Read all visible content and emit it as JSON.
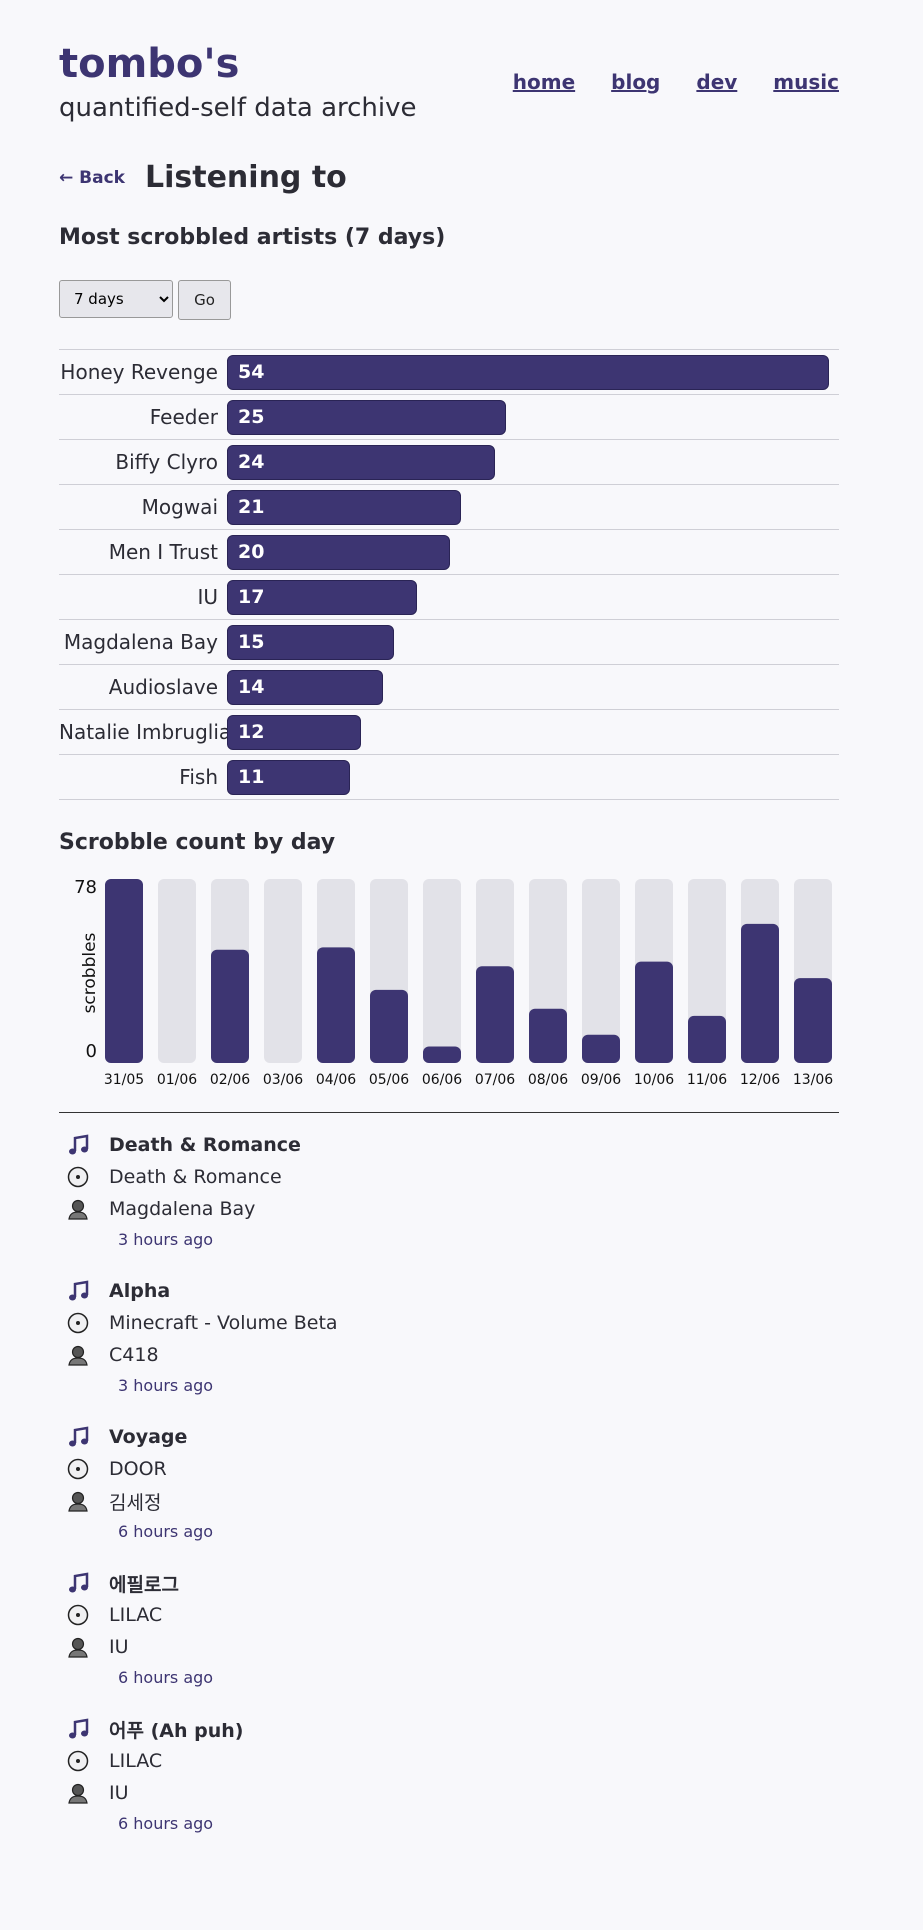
{
  "site": {
    "title": "tombo's",
    "subtitle": "quantified-self data archive",
    "nav": [
      "home",
      "blog",
      "dev",
      "music"
    ]
  },
  "page": {
    "back_label": "← Back",
    "title": "Listening to"
  },
  "top_artists": {
    "heading": "Most scrobbled artists (7 days)",
    "period_selected": "7 days",
    "go_label": "Go"
  },
  "daily": {
    "heading": "Scrobble count by day"
  },
  "colors": {
    "accent": "#3d3572",
    "bar_bg": "#e2e2e8",
    "background": "#f8f8fb"
  },
  "chart_data": [
    {
      "type": "bar",
      "orientation": "horizontal",
      "title": "Most scrobbled artists (7 days)",
      "categories": [
        "Honey Revenge",
        "Feeder",
        "Biffy Clyro",
        "Mogwai",
        "Men I Trust",
        "IU",
        "Magdalena Bay",
        "Audioslave",
        "Natalie Imbruglia",
        "Fish"
      ],
      "values": [
        54,
        25,
        24,
        21,
        20,
        17,
        15,
        14,
        12,
        11
      ],
      "data_labels": true
    },
    {
      "type": "bar",
      "title": "Scrobble count by day",
      "ylabel": "scrobbles",
      "ylim": [
        0,
        78
      ],
      "yticks": [
        "0",
        "78"
      ],
      "categories": [
        "31/05",
        "01/06",
        "02/06",
        "03/06",
        "04/06",
        "05/06",
        "06/06",
        "07/06",
        "08/06",
        "09/06",
        "10/06",
        "11/06",
        "12/06",
        "13/06"
      ],
      "values": [
        78,
        0,
        48,
        0,
        49,
        31,
        7,
        41,
        23,
        12,
        43,
        20,
        59,
        36
      ]
    }
  ],
  "recent": [
    {
      "track": "Death & Romance",
      "album": "Death & Romance",
      "artist": "Magdalena Bay",
      "time": "3 hours ago"
    },
    {
      "track": "Alpha",
      "album": "Minecraft - Volume Beta",
      "artist": "C418",
      "time": "3 hours ago"
    },
    {
      "track": "Voyage",
      "album": "DOOR",
      "artist": "김세정",
      "time": "6 hours ago"
    },
    {
      "track": "에필로그",
      "album": "LILAC",
      "artist": "IU",
      "time": "6 hours ago"
    },
    {
      "track": "어푸 (Ah puh)",
      "album": "LILAC",
      "artist": "IU",
      "time": "6 hours ago"
    }
  ],
  "icons": {
    "track": "music-note-icon",
    "album": "disc-icon",
    "artist": "person-icon"
  }
}
